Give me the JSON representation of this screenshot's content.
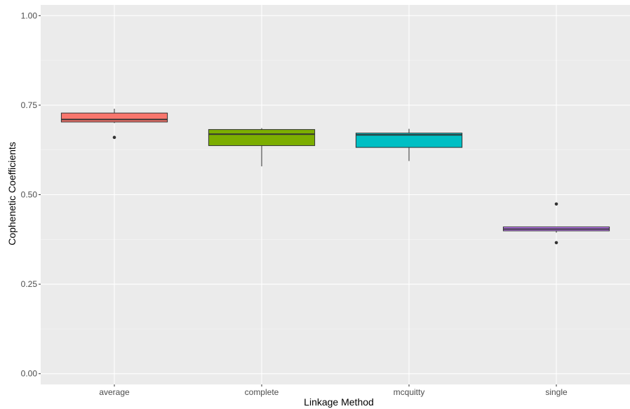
{
  "chart_data": {
    "type": "boxplot",
    "xlabel": "Linkage Method",
    "ylabel": "Cophenetic Coefficients",
    "ylim": [
      -0.03,
      1.03
    ],
    "yticks": [
      0.0,
      0.25,
      0.5,
      0.75,
      1.0
    ],
    "ytick_labels": [
      "0.00",
      "0.25",
      "0.50",
      "0.75",
      "1.00"
    ],
    "grid": true,
    "legend": "none",
    "categories": [
      "average",
      "complete",
      "mcquitty",
      "single"
    ],
    "boxes": [
      {
        "category": "average",
        "color": "#F8766D",
        "whisker_low": 0.7,
        "q1": 0.703,
        "median": 0.71,
        "q3": 0.728,
        "whisker_high": 0.74,
        "outliers": [
          0.66
        ]
      },
      {
        "category": "complete",
        "color": "#7CAE00",
        "whisker_low": 0.579,
        "q1": 0.637,
        "median": 0.669,
        "q3": 0.682,
        "whisker_high": 0.686,
        "outliers": []
      },
      {
        "category": "mcquitty",
        "color": "#00BFC4",
        "whisker_low": 0.594,
        "q1": 0.632,
        "median": 0.667,
        "q3": 0.672,
        "whisker_high": 0.684,
        "outliers": []
      },
      {
        "category": "single",
        "color": "#C77CFF",
        "whisker_low": 0.394,
        "q1": 0.399,
        "median": 0.404,
        "q3": 0.41,
        "whisker_high": 0.41,
        "outliers": [
          0.474,
          0.366
        ]
      }
    ]
  }
}
